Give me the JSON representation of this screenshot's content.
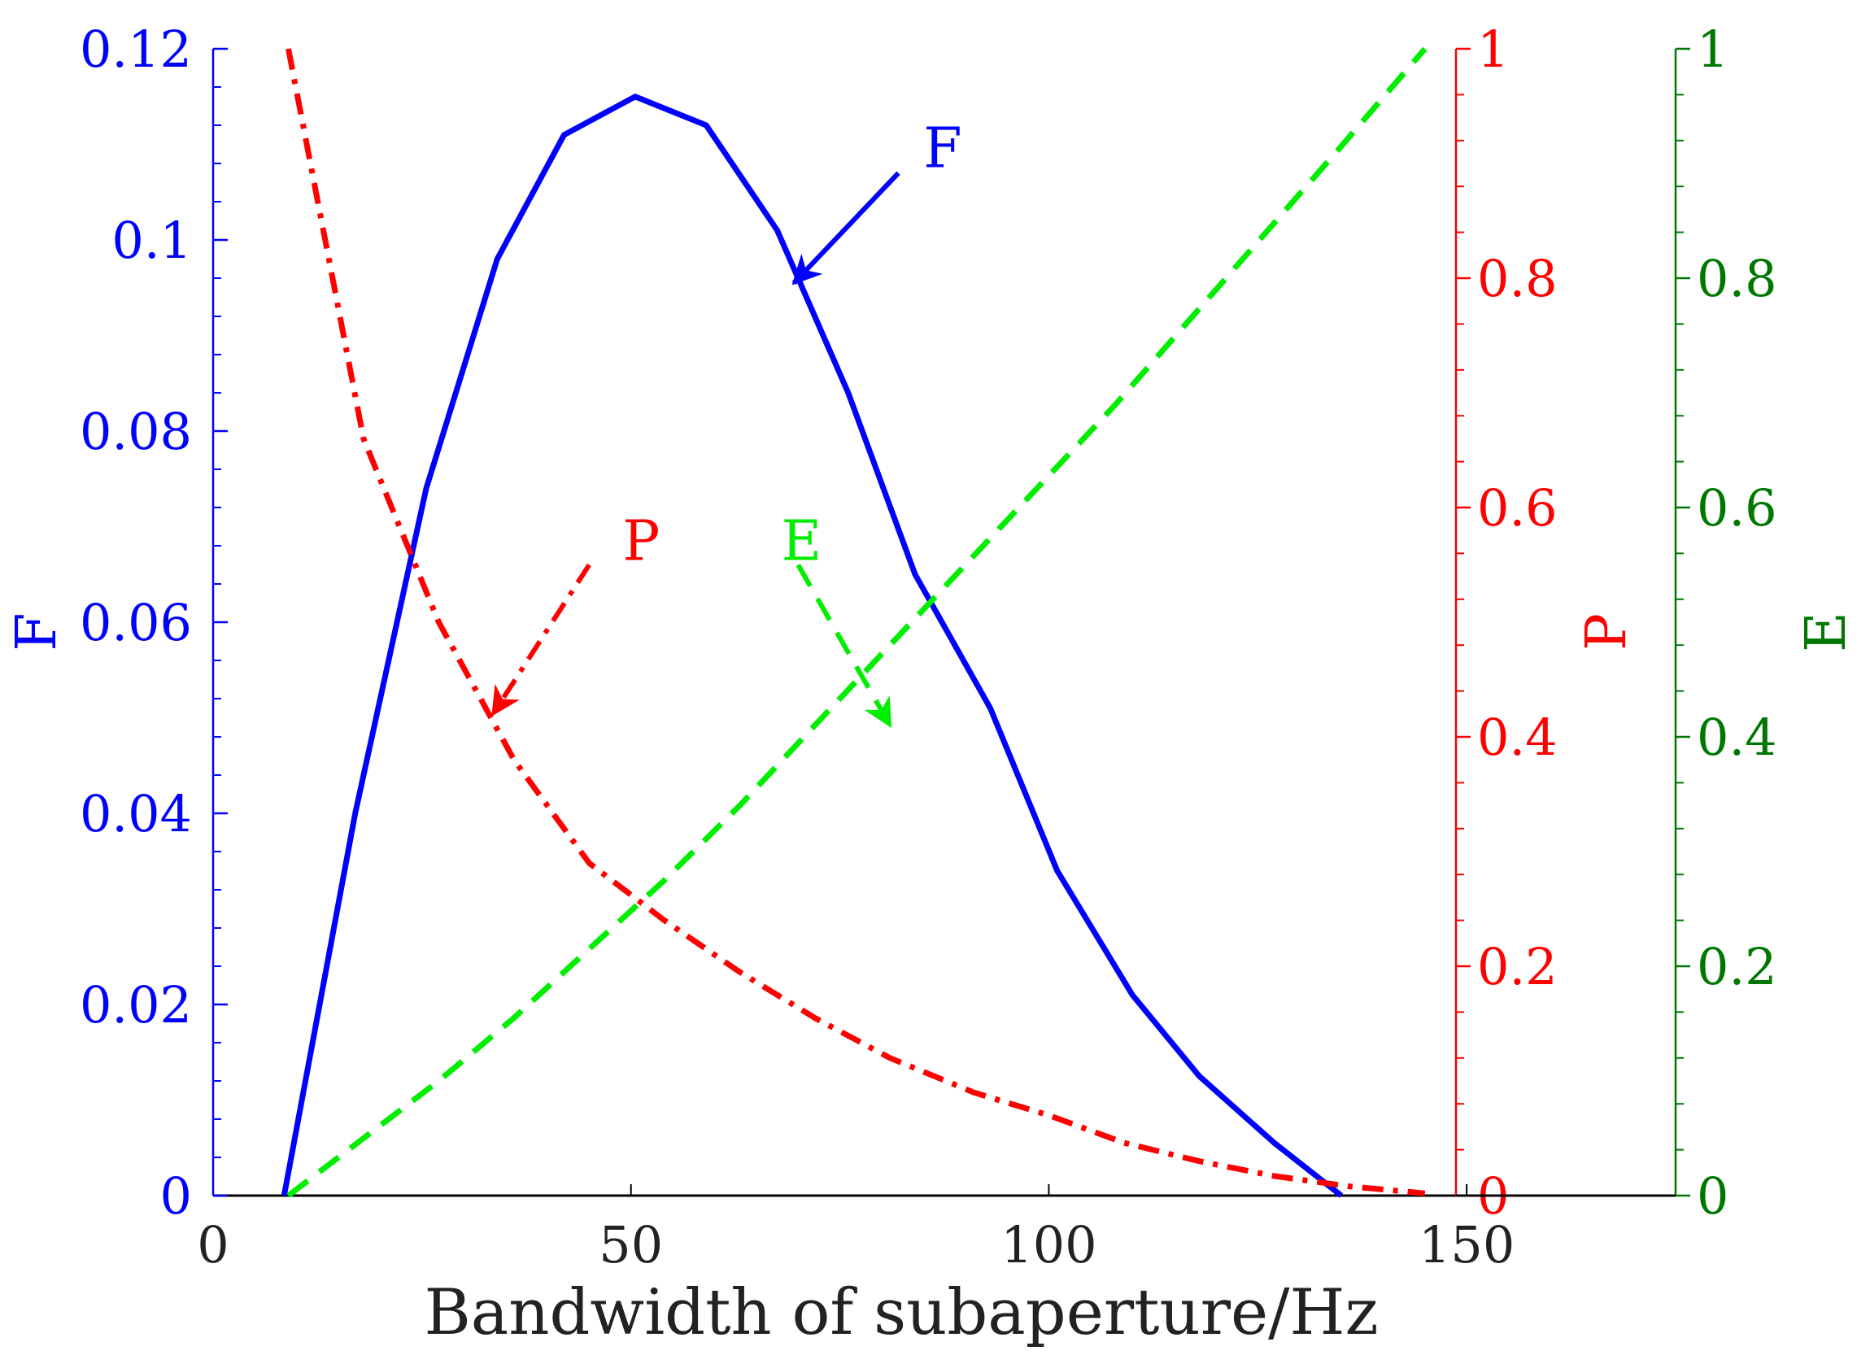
{
  "chart_data": {
    "type": "line",
    "xlabel": "Bandwidth of subaperture/Hz",
    "xlim": [
      0,
      175
    ],
    "x_ticks": [
      0,
      50,
      100,
      150
    ],
    "axes": {
      "F": {
        "label": "F",
        "ylim": [
          0,
          0.12
        ],
        "ticks": [
          "0",
          "0.02",
          "0.04",
          "0.06",
          "0.08",
          "0.1",
          "0.12"
        ],
        "color": "#0000ff"
      },
      "P": {
        "label": "P",
        "ylim": [
          0,
          1
        ],
        "ticks": [
          "0",
          "0.2",
          "0.4",
          "0.6",
          "0.8",
          "1"
        ],
        "color": "#ff0000"
      },
      "E": {
        "label": "E",
        "ylim": [
          0,
          1
        ],
        "ticks": [
          "0",
          "0.2",
          "0.4",
          "0.6",
          "0.8",
          "1"
        ],
        "color": "#007700"
      }
    },
    "series": [
      {
        "name": "F",
        "axis": "F",
        "color": "#0000ff",
        "style": "solid",
        "x": [
          8.5,
          17,
          25.5,
          34,
          42,
          50.5,
          59,
          67.5,
          76,
          84,
          93,
          101,
          110,
          118,
          127,
          135
        ],
        "y": [
          0,
          0.04,
          0.074,
          0.098,
          0.111,
          0.115,
          0.112,
          0.101,
          0.084,
          0.065,
          0.051,
          0.034,
          0.021,
          0.0125,
          0.0055,
          0
        ]
      },
      {
        "name": "P",
        "axis": "P",
        "color": "#ff0000",
        "style": "dashdot",
        "x": [
          9,
          18,
          27,
          36,
          45,
          54,
          63,
          72,
          81,
          91,
          100,
          109,
          118,
          127,
          136,
          145
        ],
        "y": [
          1.0,
          0.66,
          0.5,
          0.38,
          0.29,
          0.24,
          0.195,
          0.155,
          0.12,
          0.09,
          0.07,
          0.046,
          0.03,
          0.017,
          0.008,
          0.002
        ]
      },
      {
        "name": "E",
        "axis": "E",
        "color": "#00ee00",
        "style": "dashed",
        "x": [
          9,
          18,
          27,
          36,
          45,
          54,
          63,
          72,
          81,
          90,
          99,
          108,
          117,
          126,
          135,
          145
        ],
        "y": [
          0,
          0.05,
          0.1,
          0.155,
          0.215,
          0.275,
          0.34,
          0.41,
          0.48,
          0.55,
          0.62,
          0.69,
          0.765,
          0.84,
          0.915,
          1.0
        ]
      }
    ],
    "annotations": [
      {
        "text": "F",
        "color": "#0000ff",
        "style": "solid",
        "label_at": [
          85,
          0.1095
        ],
        "arrow_from": [
          82,
          0.107
        ],
        "arrow_to": [
          69.5,
          0.0955
        ]
      },
      {
        "text": "P",
        "color": "#ff0000",
        "style": "dashdot",
        "label_at": [
          49,
          0.57
        ],
        "arrow_from": [
          45,
          0.55
        ],
        "arrow_to": [
          33.5,
          0.42
        ]
      },
      {
        "text": "E",
        "color": "#00ee00",
        "style": "dashed",
        "label_at": [
          68,
          0.57
        ],
        "arrow_from": [
          70,
          0.55
        ],
        "arrow_to": [
          81,
          0.41
        ]
      }
    ],
    "grid": false,
    "legend": "none"
  }
}
